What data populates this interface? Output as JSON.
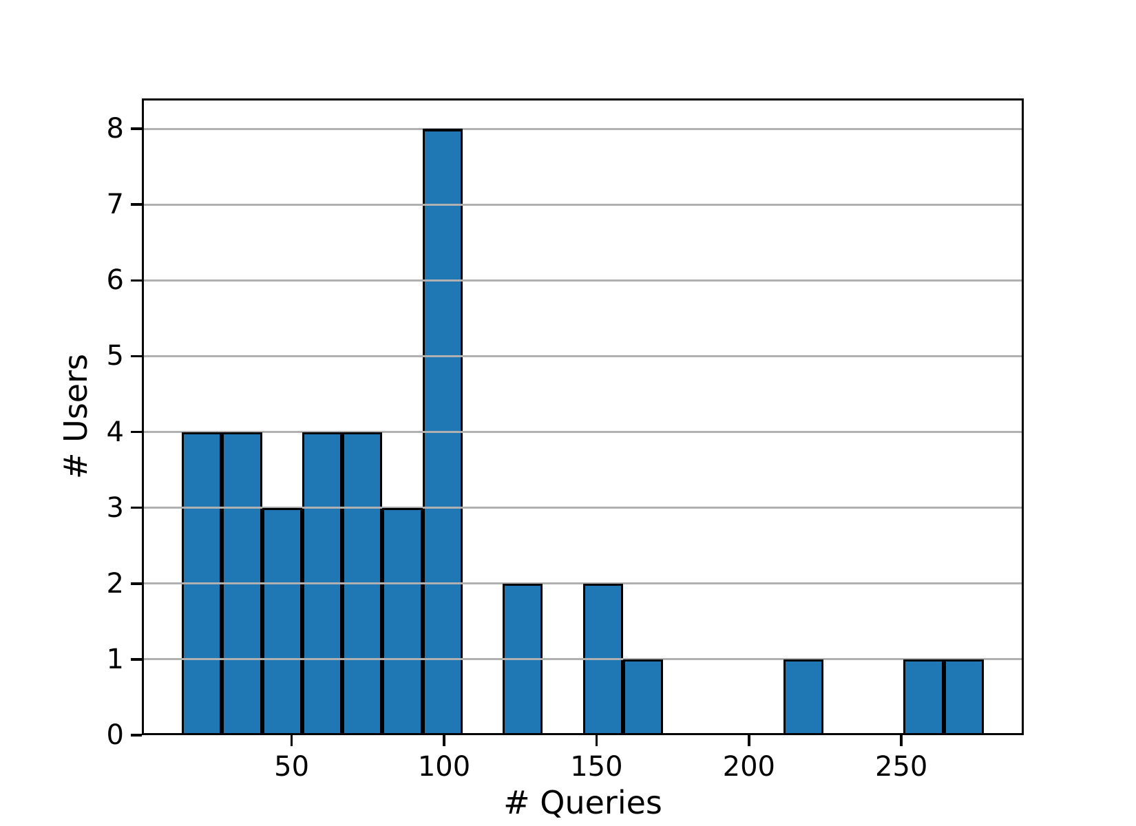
{
  "chart_data": {
    "type": "bar",
    "subtype": "histogram",
    "title": "",
    "xlabel": "# Queries",
    "ylabel": "# Users",
    "bin_edges": [
      14.0,
      27.15,
      40.3,
      53.45,
      66.6,
      79.75,
      92.9,
      106.05,
      119.2,
      132.35,
      145.5,
      158.65,
      171.8,
      184.95,
      198.1,
      211.25,
      224.4,
      237.55,
      250.7,
      263.85,
      277.0
    ],
    "counts": [
      4,
      4,
      3,
      4,
      4,
      3,
      8,
      0,
      2,
      0,
      2,
      1,
      0,
      0,
      0,
      1,
      0,
      0,
      1,
      1
    ],
    "xticks": [
      50,
      100,
      150,
      200,
      250
    ],
    "yticks": [
      0,
      1,
      2,
      3,
      4,
      5,
      6,
      7,
      8
    ],
    "xlim": [
      0.85,
      290.15
    ],
    "ylim": [
      0,
      8.4
    ],
    "grid": "horizontal-on-top-of-bars",
    "legend": "none",
    "bar_color": "#1f77b4",
    "bar_edge_color": "#000000",
    "grid_color": "#b0b0b0",
    "axis_color": "#000000",
    "background_color": "#ffffff"
  }
}
